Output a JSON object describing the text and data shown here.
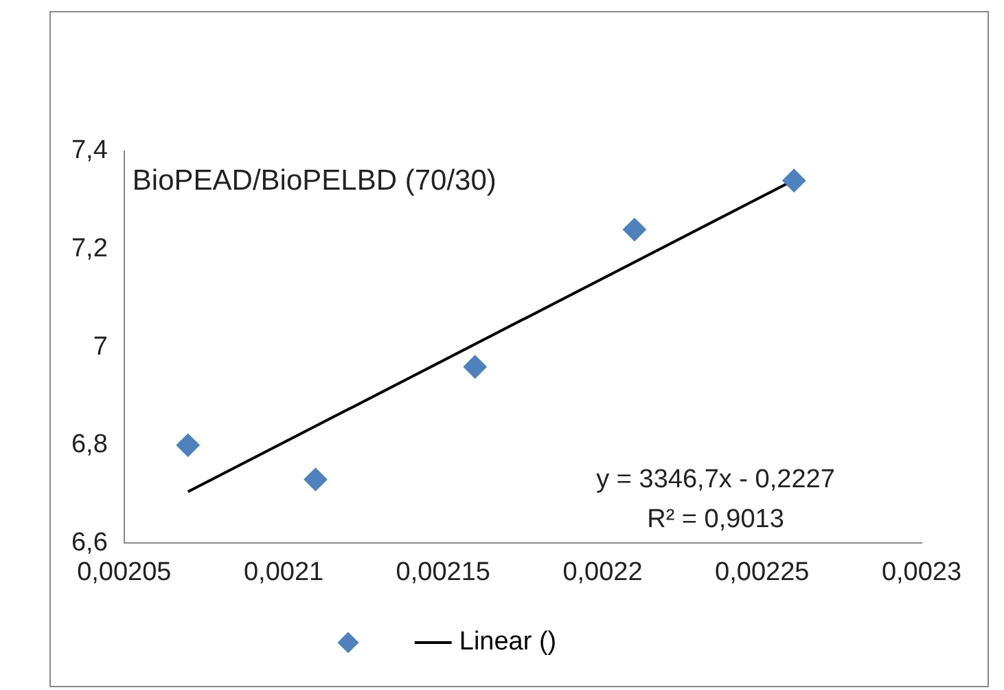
{
  "chart_data": {
    "type": "scatter",
    "title": "BioPEAD/BioPELBD (70/30)",
    "x": [
      0.00207,
      0.00211,
      0.00216,
      0.00221,
      0.00226
    ],
    "series": [
      {
        "color": "#4f81bd",
        "values": [
          6.8,
          6.73,
          6.96,
          7.24,
          7.34
        ]
      },
      {
        "type": "line",
        "name": "Linear ()",
        "color": "#000000",
        "x": [
          0.00207,
          0.00226
        ],
        "values": [
          6.705,
          7.341
        ],
        "marker": "none"
      }
    ],
    "marker": "diamond",
    "xlim": [
      0.00205,
      0.0023
    ],
    "xticks": [
      {
        "value": 0.00205,
        "label": "0,00205"
      },
      {
        "value": 0.0021,
        "label": "0,0021"
      },
      {
        "value": 0.00215,
        "label": "0,00215"
      },
      {
        "value": 0.0022,
        "label": "0,0022"
      },
      {
        "value": 0.00225,
        "label": "0,00225"
      },
      {
        "value": 0.0023,
        "label": "0,0023"
      }
    ],
    "ylim": [
      6.6,
      7.4
    ],
    "yticks": [
      {
        "value": 6.6,
        "label": "6,6"
      },
      {
        "value": 6.8,
        "label": "6,8"
      },
      {
        "value": 7,
        "label": "7"
      },
      {
        "value": 7.2,
        "label": "7,2"
      },
      {
        "value": 7.4,
        "label": "7,4"
      }
    ],
    "grid": false,
    "legend": "bottom",
    "annotations": [
      "y = 3346,7x - 0,2227",
      "R² = 0,9013"
    ]
  }
}
